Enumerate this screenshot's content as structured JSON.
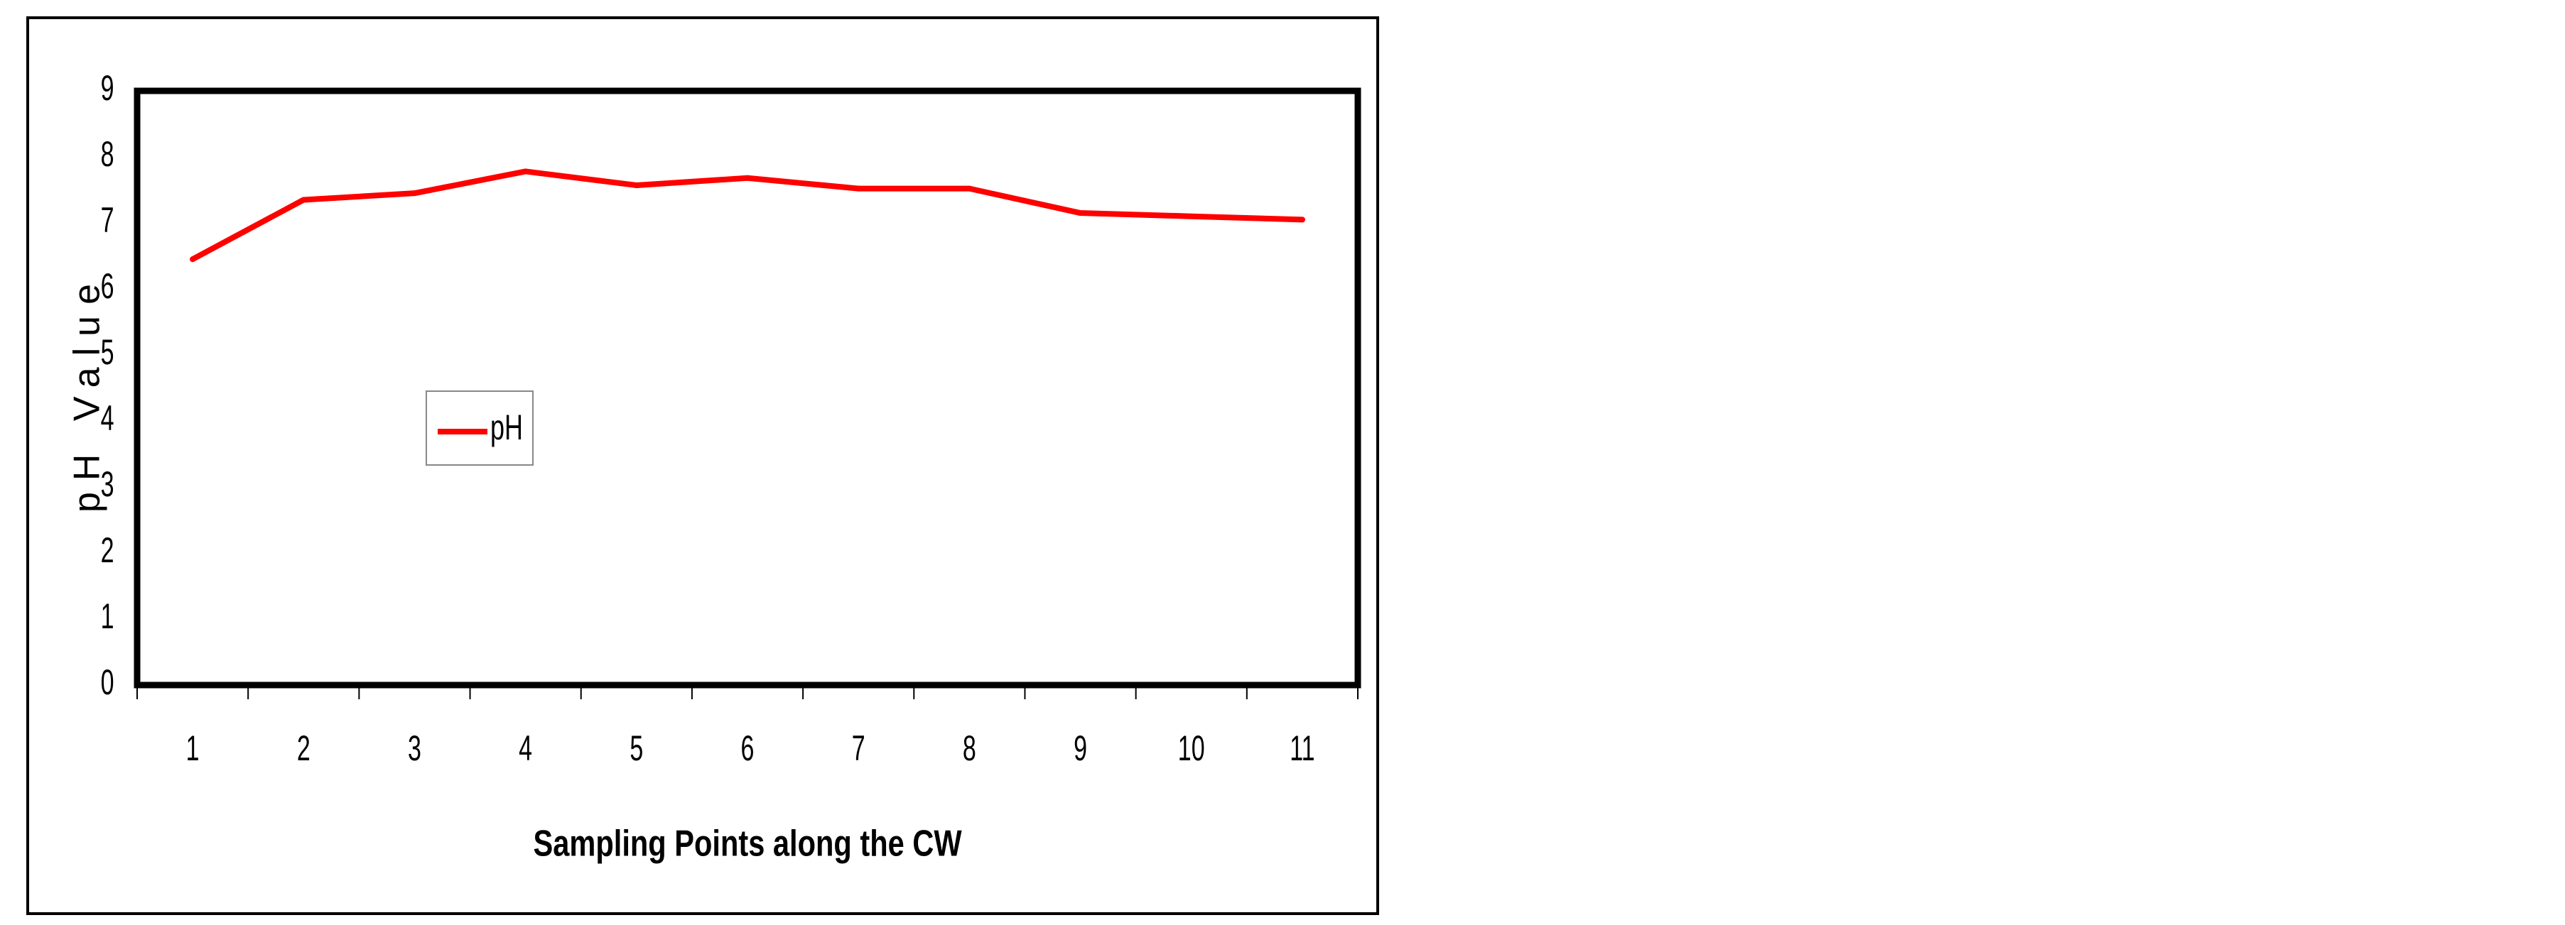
{
  "chart_data": {
    "type": "line",
    "title": "",
    "xlabel": "Sampling Points along the CW",
    "ylabel": "pH Value",
    "categories": [
      "1",
      "2",
      "3",
      "4",
      "5",
      "6",
      "7",
      "8",
      "9",
      "10",
      "11"
    ],
    "series": [
      {
        "name": "pH",
        "color": "#ff0000",
        "values": [
          6.45,
          7.35,
          7.45,
          7.78,
          7.57,
          7.68,
          7.52,
          7.52,
          7.15,
          7.1,
          7.05
        ]
      }
    ],
    "ylim": [
      0,
      9
    ],
    "yticks": [
      0,
      1,
      2,
      3,
      4,
      5,
      6,
      7,
      8,
      9
    ],
    "grid": false,
    "legend": "left-middle inside plot"
  }
}
